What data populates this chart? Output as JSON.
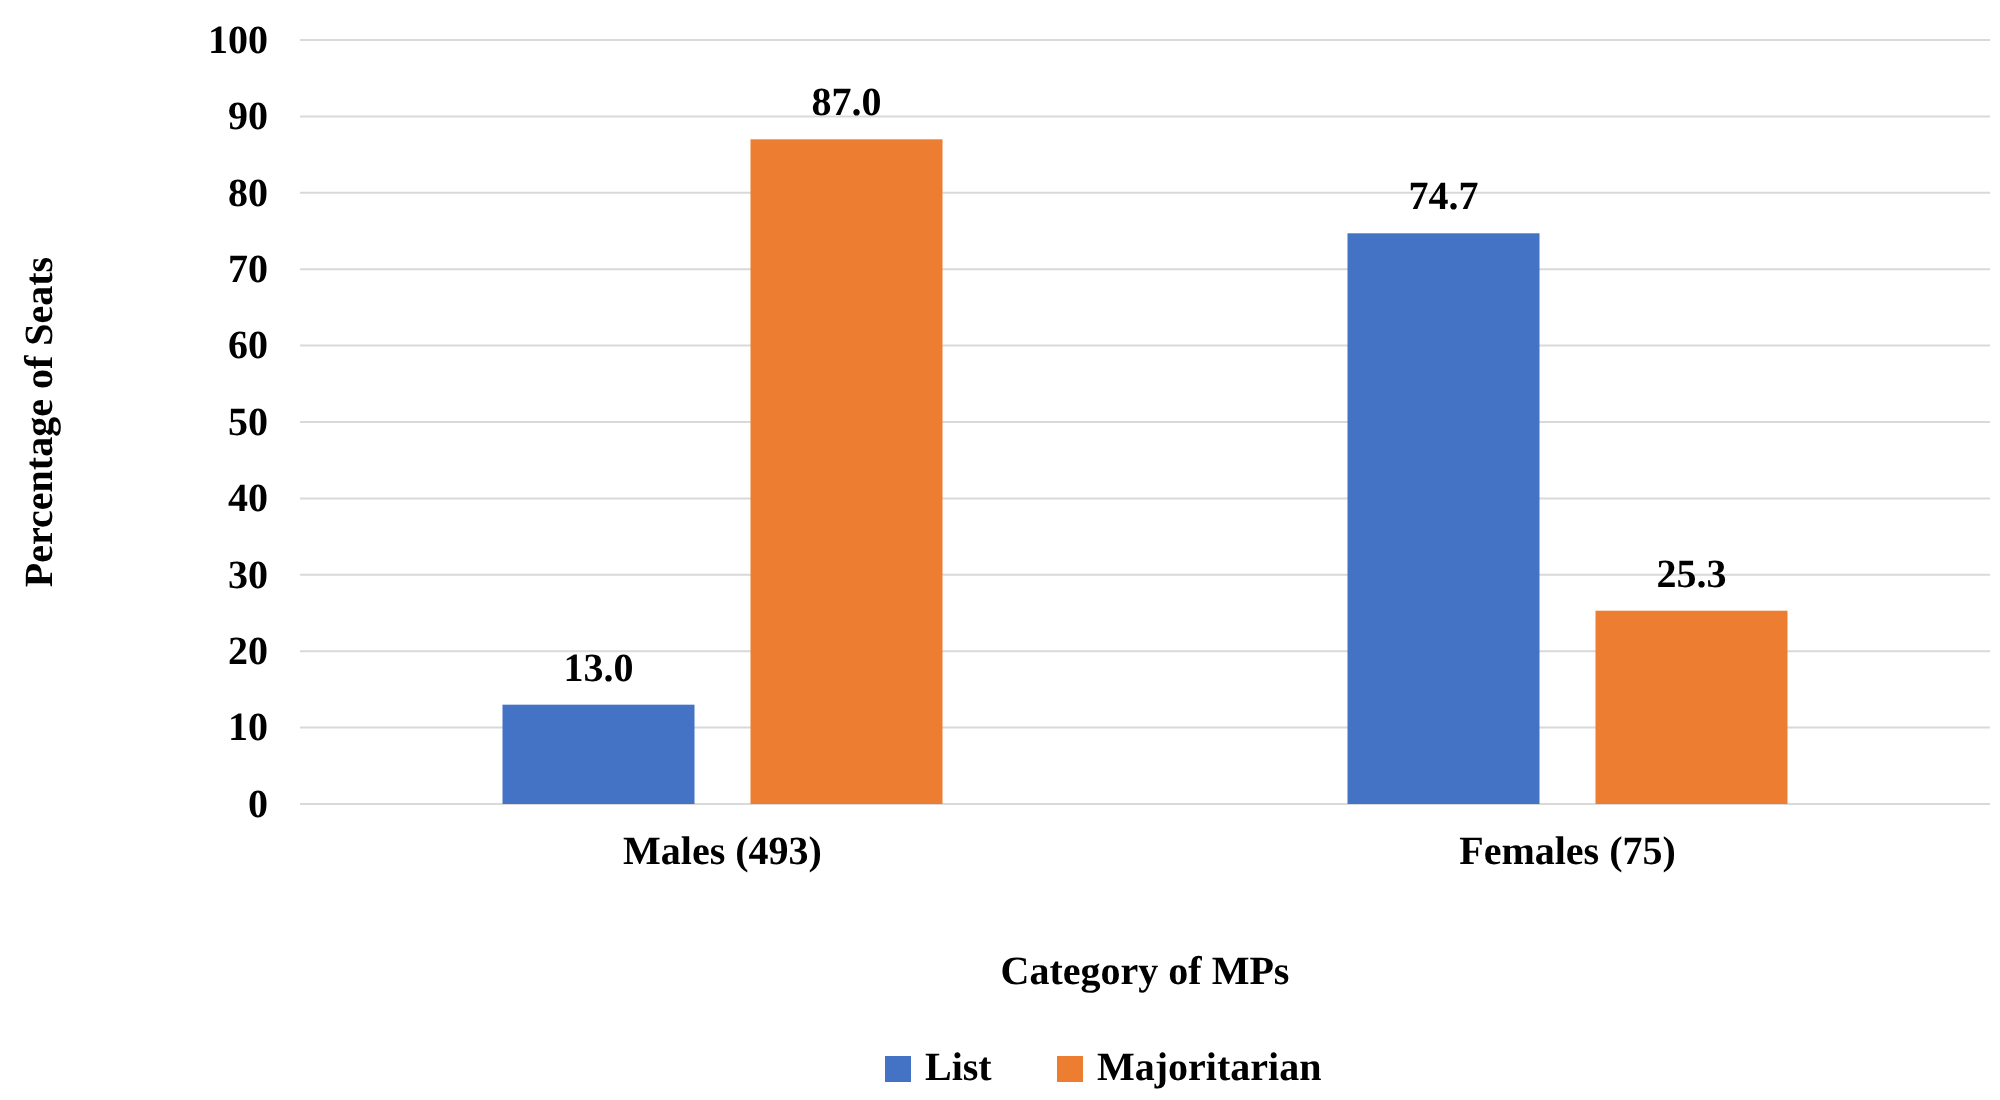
{
  "chart_data": {
    "type": "bar",
    "xlabel": "Category of MPs",
    "ylabel": "Percentage of Seats",
    "categories": [
      "Males (493)",
      "Females (75)"
    ],
    "series": [
      {
        "name": "List",
        "color": "#4472c4",
        "values": [
          13.0,
          74.7
        ],
        "value_labels": [
          "13.0",
          "74.7"
        ]
      },
      {
        "name": "Majoritarian",
        "color": "#ed7d31",
        "values": [
          87.0,
          25.3
        ],
        "value_labels": [
          "87.0",
          "25.3"
        ]
      }
    ],
    "ylim": [
      0,
      100
    ],
    "yticks": [
      0,
      10,
      20,
      30,
      40,
      50,
      60,
      70,
      80,
      90,
      100
    ],
    "grid": "y",
    "legend": "bottom"
  }
}
